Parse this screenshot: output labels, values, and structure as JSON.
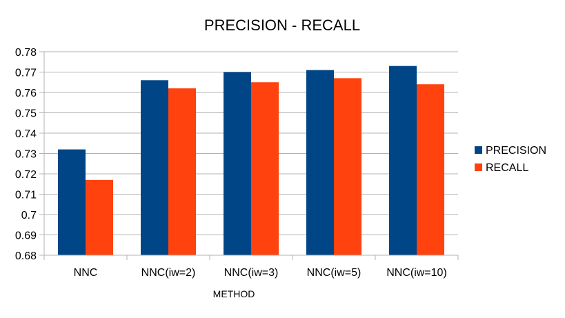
{
  "colors": {
    "precision": "#004586",
    "recall": "#ff420e",
    "grid": "#b3b3b3",
    "axis": "#b3b3b3"
  },
  "chart_data": {
    "type": "bar",
    "title": "PRECISION - RECALL",
    "xlabel": "METHOD",
    "ylabel": "",
    "categories": [
      "NNC",
      "NNC(iw=2)",
      "NNC(iw=3)",
      "NNC(iw=5)",
      "NNC(iw=10)"
    ],
    "series": [
      {
        "name": "PRECISION",
        "values": [
          0.732,
          0.766,
          0.77,
          0.771,
          0.773
        ]
      },
      {
        "name": "RECALL",
        "values": [
          0.717,
          0.762,
          0.765,
          0.767,
          0.764
        ]
      }
    ],
    "ylim": [
      0.68,
      0.78
    ],
    "yticks": [
      "0.78",
      "0.77",
      "0.76",
      "0.75",
      "0.74",
      "0.73",
      "0.72",
      "0.71",
      "0.7",
      "0.69",
      "0.68"
    ],
    "grid": true,
    "legend_position": "right"
  }
}
